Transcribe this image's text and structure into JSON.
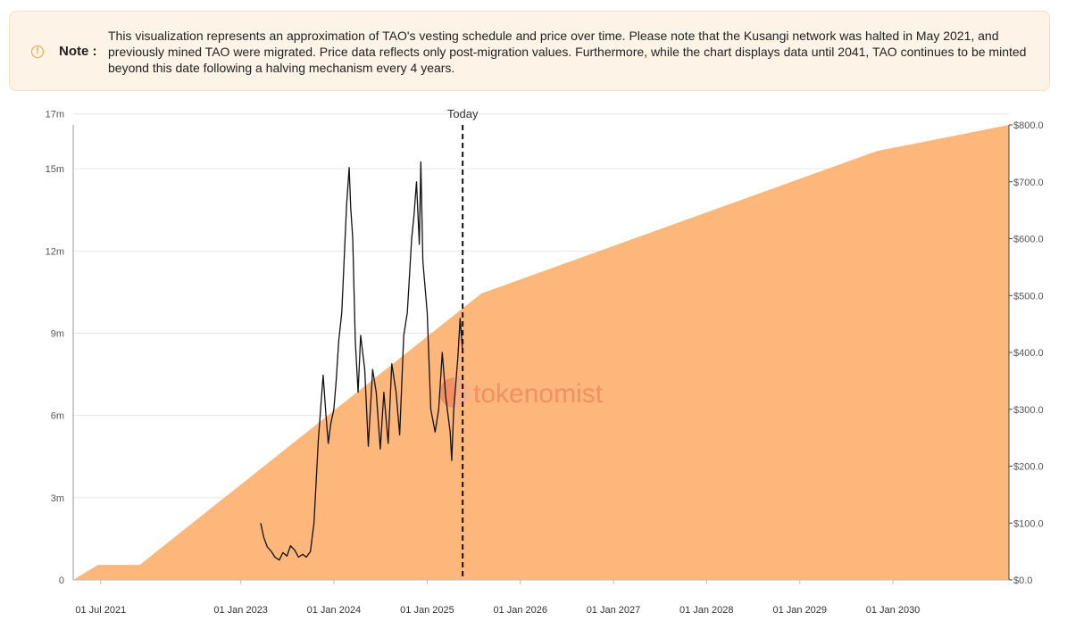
{
  "note": {
    "icon": "info-circle-icon",
    "label": "Note :",
    "text": "This visualization represents an approximation of TAO's vesting schedule and price over time. Please note that the Kusangi network was halted in May 2021, and previously mined TAO were migrated. Price data reflects only post-migration values. Furthermore, while the chart displays data until 2041, TAO continues to be minted beyond this date following a halving mechanism every 4 years."
  },
  "watermark": {
    "text": "tokenomist"
  },
  "chart_data": {
    "type": "area",
    "today_label": "Today",
    "today_date": "2025-05-20",
    "x_ticks": [
      "01 Jul 2021",
      "01 Jan 2023",
      "01 Jan 2024",
      "01 Jan 2025",
      "01 Jan 2026",
      "01 Jan 2027",
      "01 Jan 2028",
      "01 Jan 2029",
      "01 Jan 2030"
    ],
    "x_tick_dates": [
      "2021-07-01",
      "2023-01-01",
      "2024-01-01",
      "2025-01-01",
      "2026-01-01",
      "2027-01-01",
      "2028-01-01",
      "2029-01-01",
      "2030-01-01"
    ],
    "xlim": [
      "2021-03-15",
      "2031-04-01"
    ],
    "y_left": {
      "ticks": [
        0,
        3000000,
        6000000,
        9000000,
        12000000,
        15000000,
        17000000
      ],
      "tick_labels": [
        "0",
        "3m",
        "6m",
        "9m",
        "12m",
        "15m",
        "17m"
      ],
      "ylim": [
        0,
        16600000
      ]
    },
    "y_right": {
      "ticks": [
        0,
        100,
        200,
        300,
        400,
        500,
        600,
        700,
        800
      ],
      "tick_labels": [
        "$0.0",
        "$100.0",
        "$200.0",
        "$300.0",
        "$400.0",
        "$500.0",
        "$600.0",
        "$700.0",
        "$800.0"
      ],
      "ylim": [
        0,
        800
      ]
    },
    "supply_color": "#fdb77b",
    "price_color": "#111111",
    "supply": {
      "x": [
        "2021-03-15",
        "2021-06-20",
        "2021-12-01",
        "2025-08-01",
        "2029-11-01",
        "2031-04-01"
      ],
      "y": [
        0,
        550000,
        550000,
        10450000,
        15650000,
        16600000
      ]
    },
    "price": {
      "x": [
        "2023-03-20",
        "2023-04-01",
        "2023-04-15",
        "2023-05-01",
        "2023-05-15",
        "2023-06-01",
        "2023-06-15",
        "2023-07-01",
        "2023-07-15",
        "2023-08-01",
        "2023-08-15",
        "2023-09-01",
        "2023-09-15",
        "2023-10-01",
        "2023-10-15",
        "2023-10-25",
        "2023-11-01",
        "2023-11-10",
        "2023-11-20",
        "2023-12-01",
        "2023-12-10",
        "2023-12-20",
        "2024-01-01",
        "2024-01-10",
        "2024-01-20",
        "2024-02-01",
        "2024-02-10",
        "2024-02-20",
        "2024-03-01",
        "2024-03-07",
        "2024-03-15",
        "2024-03-25",
        "2024-04-05",
        "2024-04-15",
        "2024-05-01",
        "2024-05-15",
        "2024-06-01",
        "2024-06-15",
        "2024-07-01",
        "2024-07-15",
        "2024-08-01",
        "2024-08-15",
        "2024-09-01",
        "2024-09-15",
        "2024-10-01",
        "2024-10-15",
        "2024-11-01",
        "2024-11-10",
        "2024-11-20",
        "2024-12-01",
        "2024-12-07",
        "2024-12-15",
        "2025-01-01",
        "2025-01-15",
        "2025-02-01",
        "2025-02-15",
        "2025-03-01",
        "2025-03-15",
        "2025-04-01",
        "2025-04-07",
        "2025-04-15",
        "2025-05-01",
        "2025-05-10",
        "2025-05-20"
      ],
      "y": [
        100,
        75,
        58,
        50,
        40,
        35,
        48,
        42,
        60,
        52,
        40,
        45,
        40,
        50,
        100,
        185,
        245,
        300,
        360,
        290,
        240,
        275,
        300,
        350,
        420,
        470,
        560,
        660,
        725,
        655,
        600,
        420,
        330,
        430,
        370,
        235,
        370,
        330,
        230,
        330,
        240,
        380,
        330,
        255,
        430,
        470,
        600,
        640,
        700,
        590,
        735,
        560,
        470,
        300,
        260,
        300,
        400,
        320,
        260,
        210,
        300,
        390,
        460,
        400
      ]
    }
  }
}
